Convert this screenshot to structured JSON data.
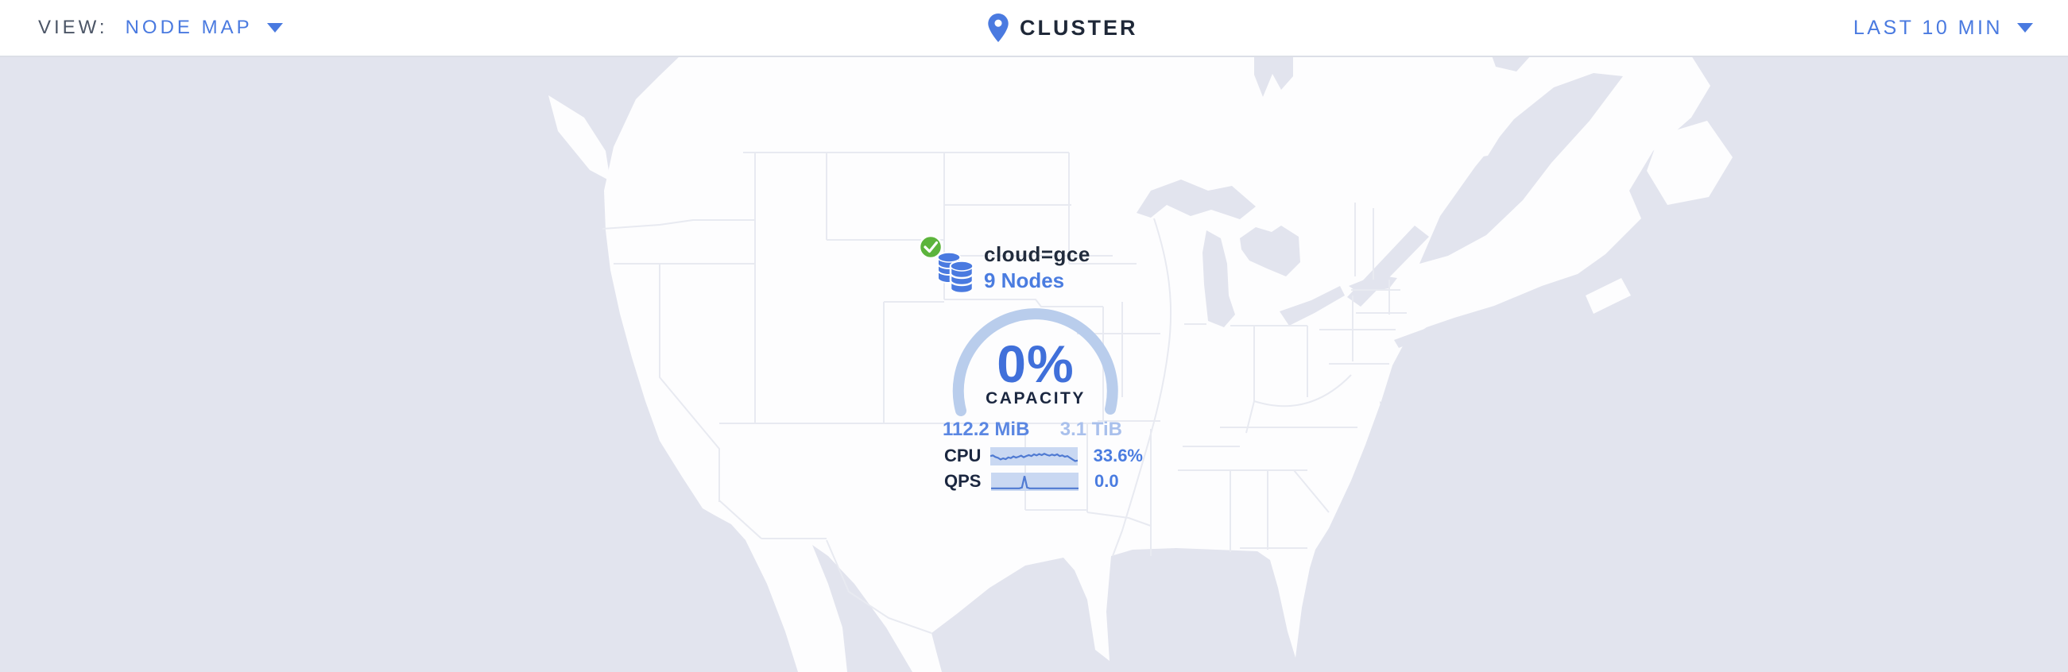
{
  "toolbar": {
    "view_label": "VIEW:",
    "view_value": "NODE MAP",
    "cluster_title": "CLUSTER",
    "time_range": "LAST 10 MIN"
  },
  "cluster_marker": {
    "status": "healthy",
    "locality": "cloud=gce",
    "nodes_link": "9 Nodes",
    "capacity_percent": "0%",
    "capacity_label": "CAPACITY",
    "capacity_used": "112.2 MiB",
    "capacity_total": "3.1 TiB",
    "cpu_label": "CPU",
    "cpu_value": "33.6%",
    "cpu_series": [
      0.55,
      0.6,
      0.48,
      0.42,
      0.3,
      0.38,
      0.32,
      0.45,
      0.4,
      0.52,
      0.44,
      0.5,
      0.58,
      0.46,
      0.55,
      0.62,
      0.55,
      0.68,
      0.6,
      0.7,
      0.62,
      0.72,
      0.64,
      0.58,
      0.66,
      0.6,
      0.68,
      0.55,
      0.6,
      0.5,
      0.55,
      0.42,
      0.3,
      0.18,
      0.22
    ],
    "qps_label": "QPS",
    "qps_value": "0.0",
    "qps_series": [
      0.04,
      0.04,
      0.04,
      0.04,
      0.04,
      0.04,
      0.04,
      0.04,
      0.04,
      0.04,
      0.04,
      0.04,
      0.1,
      0.95,
      0.1,
      0.04,
      0.04,
      0.04,
      0.04,
      0.04,
      0.04,
      0.04,
      0.04,
      0.04,
      0.04,
      0.04,
      0.04,
      0.04,
      0.04,
      0.04,
      0.04,
      0.04,
      0.04,
      0.04,
      0.04
    ]
  },
  "icons": {
    "location_pin": "location-pin-icon",
    "caret_down": "caret-down-icon",
    "database_stack": "database-stack-icon",
    "health_check": "health-check-icon"
  },
  "colors": {
    "accent_blue": "#4a7ae0",
    "link_blue": "#4a7ce0",
    "gauge_arc": "#b9cdec",
    "capacity_total_blue": "#a9c0ec",
    "spark_fill": "#c9d8f2",
    "spark_line": "#4f7ad2",
    "healthy_green": "#5cb43c",
    "ocean": "#e2e4ee",
    "land": "#fdfdfe",
    "state_border": "#e8eaf1",
    "dark_text": "#1b2740"
  }
}
